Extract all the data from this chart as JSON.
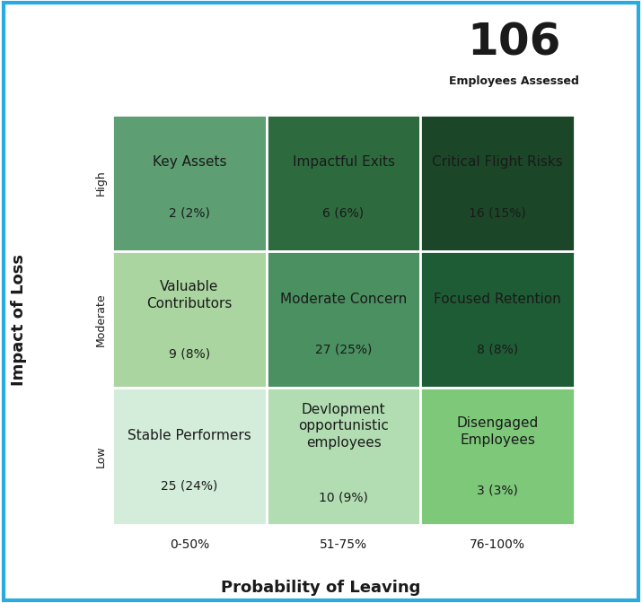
{
  "title_number": "106",
  "title_sub": "Employees Assessed",
  "xlabel": "Probability of Leaving",
  "ylabel": "Impact of Loss",
  "x_labels": [
    "0-50%",
    "51-75%",
    "76-100%"
  ],
  "y_labels": [
    "Low",
    "Moderate",
    "High"
  ],
  "cells": [
    {
      "row": 2,
      "col": 0,
      "label": "Key Assets",
      "value": "2 (2%)",
      "color": "#5d9e72"
    },
    {
      "row": 2,
      "col": 1,
      "label": "Impactful Exits",
      "value": "6 (6%)",
      "color": "#2d6b3e"
    },
    {
      "row": 2,
      "col": 2,
      "label": "Critical Flight Risks",
      "value": "16 (15%)",
      "color": "#1b4728"
    },
    {
      "row": 1,
      "col": 0,
      "label": "Valuable\nContributors",
      "value": "9 (8%)",
      "color": "#aad5a0"
    },
    {
      "row": 1,
      "col": 1,
      "label": "Moderate Concern",
      "value": "27 (25%)",
      "color": "#4a9060"
    },
    {
      "row": 1,
      "col": 2,
      "label": "Focused Retention",
      "value": "8 (8%)",
      "color": "#1e5c35"
    },
    {
      "row": 0,
      "col": 0,
      "label": "Stable Performers",
      "value": "25 (24%)",
      "color": "#d4edda"
    },
    {
      "row": 0,
      "col": 1,
      "label": "Devlopment\nopportunistic\nemployees",
      "value": "10 (9%)",
      "color": "#b2ddb2"
    },
    {
      "row": 0,
      "col": 2,
      "label": "Disengaged\nEmployees",
      "value": "3 (3%)",
      "color": "#7ec87a"
    }
  ],
  "arrow_color": "#1a4a28",
  "border_color": "#29abe2",
  "grid_color": "#ffffff",
  "text_color": "#1a1a1a",
  "background_color": "#ffffff",
  "cell_label_fontsize": 11,
  "cell_value_fontsize": 10
}
